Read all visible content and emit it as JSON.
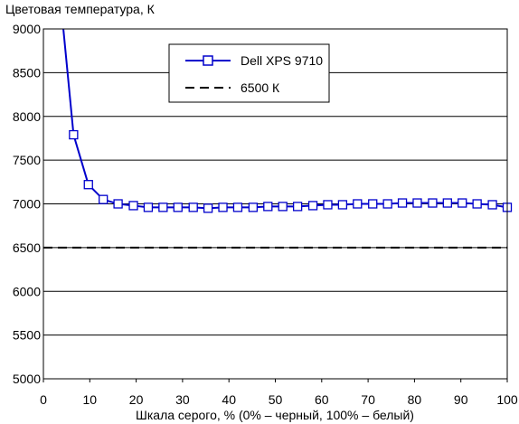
{
  "chart_data": {
    "type": "line",
    "ylabel": "Цветовая температура, К",
    "xlabel": "Шкала серого, % (0% – черный, 100% – белый)",
    "xlim": [
      0,
      100
    ],
    "ylim": [
      5000,
      9000
    ],
    "xticks": [
      0,
      10,
      20,
      30,
      40,
      50,
      60,
      70,
      80,
      90,
      100
    ],
    "yticks": [
      5000,
      5500,
      6000,
      6500,
      7000,
      7500,
      8000,
      8500,
      9000
    ],
    "grid": "horizontal",
    "legend_position": "top-center",
    "series": [
      {
        "name": "Dell XPS 9710",
        "color": "#0000cc",
        "marker": "square",
        "x": [
          6.5,
          9.7,
          12.9,
          16.1,
          19.4,
          22.6,
          25.8,
          29.0,
          32.3,
          35.5,
          38.7,
          41.9,
          45.2,
          48.4,
          51.6,
          54.8,
          58.1,
          61.3,
          64.5,
          67.7,
          71.0,
          74.2,
          77.4,
          80.6,
          83.9,
          87.1,
          90.3,
          93.5,
          96.8,
          100
        ],
        "y": [
          7790,
          7220,
          7050,
          7000,
          6980,
          6960,
          6960,
          6960,
          6960,
          6950,
          6960,
          6960,
          6960,
          6970,
          6970,
          6970,
          6980,
          6990,
          6990,
          7000,
          7000,
          7000,
          7010,
          7010,
          7010,
          7010,
          7010,
          7000,
          6990,
          6960
        ],
        "extends_above_top_at_x": 4.3
      },
      {
        "name": "6500 К",
        "color": "#000000",
        "style": "dashed",
        "x": [
          0,
          100
        ],
        "y": [
          6500,
          6500
        ]
      }
    ]
  }
}
